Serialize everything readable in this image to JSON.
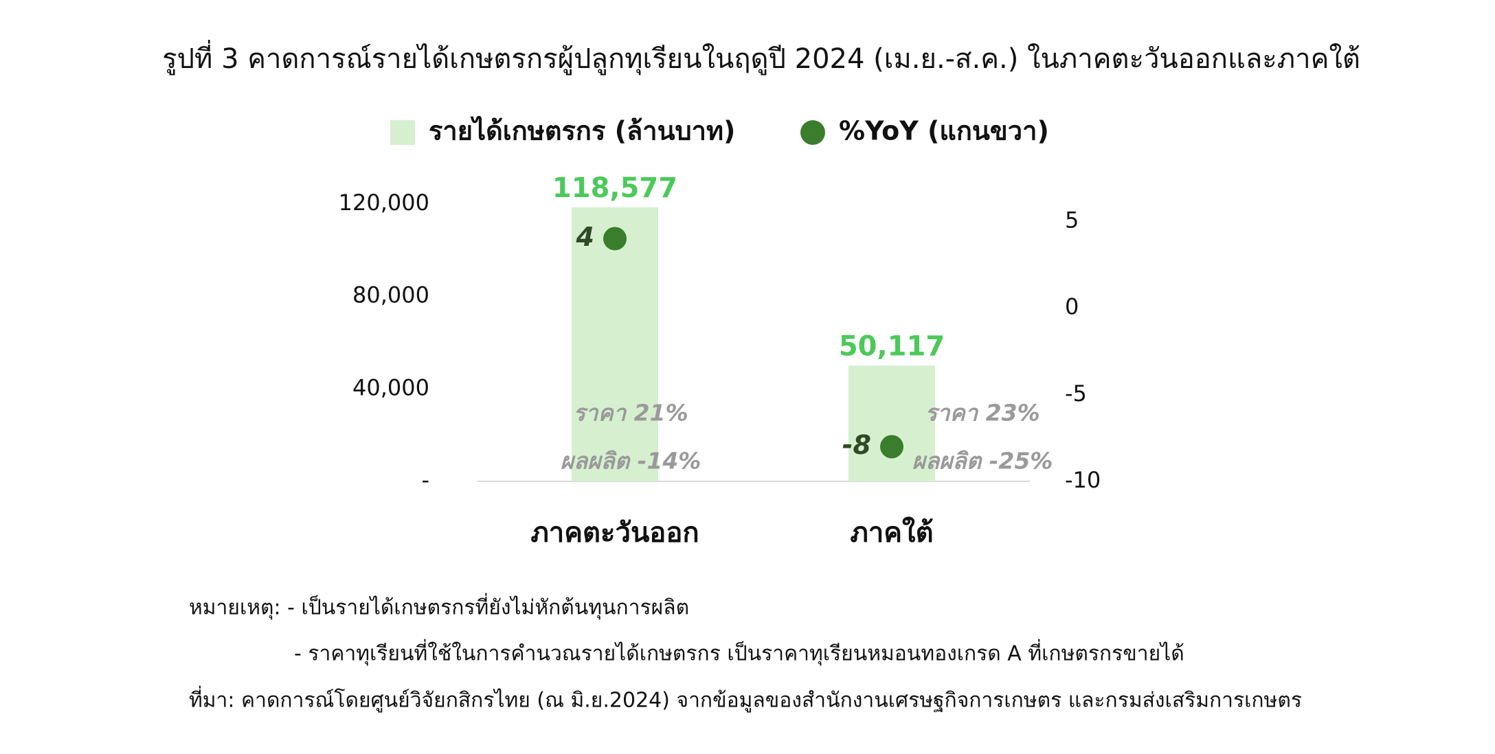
{
  "chart_data": {
    "type": "bar",
    "title": "รูปที่ 3 คาดการณ์รายได้เกษตรกรผู้ปลูกทุเรียนในฤดูปี 2024 (เม.ย.-ส.ค.) ในภาคตะวันออกและภาคใต้",
    "categories": [
      "ภาคตะวันออก",
      "ภาคใต้"
    ],
    "series": [
      {
        "name": "รายได้เกษตรกร (ล้านบาท)",
        "type": "bar",
        "color": "#d6f0cf",
        "label_color": "#4cc95a",
        "values": [
          118577,
          50117
        ],
        "value_labels": [
          "118,577",
          "50,117"
        ]
      },
      {
        "name": "%YoY (แกนขวา)",
        "type": "scatter",
        "axis": "y2",
        "color": "#3a7d2c",
        "values": [
          4,
          -8
        ]
      }
    ],
    "ylim": [
      0,
      120000
    ],
    "yticks": [
      {
        "value": 0,
        "label": "-"
      },
      {
        "value": 40000,
        "label": "40,000"
      },
      {
        "value": 80000,
        "label": "80,000"
      },
      {
        "value": 120000,
        "label": "120,000"
      }
    ],
    "y2lim": [
      -10,
      6
    ],
    "y2ticks": [
      -10,
      -5,
      0,
      5
    ],
    "legend": "top",
    "annotations": [
      [
        "ราคา 21%",
        "ผลผลิต -14%"
      ],
      [
        "ราคา 23%",
        "ผลผลิต -25%"
      ]
    ],
    "notes": [
      "หมายเหตุ: - เป็นรายได้เกษตรกรที่ยังไม่หักต้นทุนการผลิต",
      "- ราคาทุเรียนที่ใช้ในการคำนวณรายได้เกษตรกร เป็นราคาทุเรียนหมอนทองเกรด A ที่เกษตรกรขายได้",
      "ที่มา: คาดการณ์โดยศูนย์วิจัยกสิกรไทย (ณ มิ.ย.2024) จากข้อมูลของสำนักงานเศรษฐกิจการเกษตร และกรมส่งเสริมการเกษตร"
    ]
  }
}
